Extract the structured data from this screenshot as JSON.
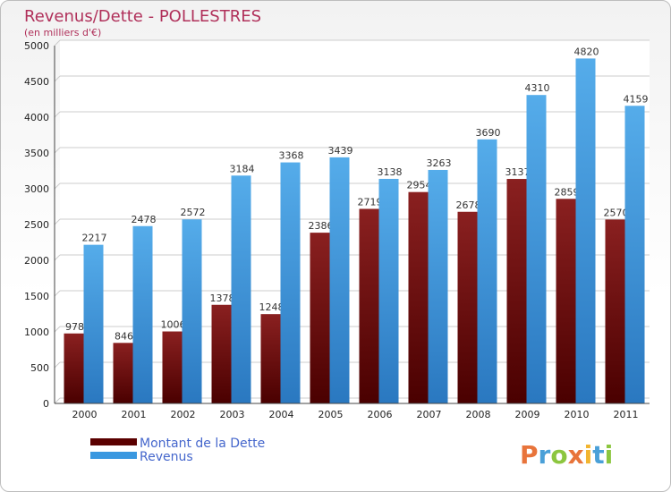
{
  "chart_data": {
    "type": "bar",
    "title": "Revenus/Dette - POLLESTRES",
    "subtitle": "(en milliers d'€)",
    "categories": [
      "2000",
      "2001",
      "2002",
      "2003",
      "2004",
      "2005",
      "2006",
      "2007",
      "2008",
      "2009",
      "2010",
      "2011"
    ],
    "series": [
      {
        "name": "Montant de la Dette",
        "color": "#7a1010",
        "values": [
          978,
          846,
          1006,
          1378,
          1248,
          2386,
          2719,
          2954,
          2678,
          3137,
          2859,
          2570
        ]
      },
      {
        "name": "Revenus",
        "color": "#3a98e0",
        "values": [
          2217,
          2478,
          2572,
          3184,
          3368,
          3439,
          3138,
          3263,
          3690,
          4310,
          4820,
          4159
        ]
      }
    ],
    "ylim": [
      0,
      5000
    ],
    "yticks": [
      0,
      500,
      1000,
      1500,
      2000,
      2500,
      3000,
      3500,
      4000,
      4500,
      5000
    ],
    "grid": true,
    "legend": "bottom-left"
  },
  "brand": {
    "letters": [
      "P",
      "r",
      "o",
      "x",
      "i",
      "t",
      "i"
    ],
    "colors": [
      "#e8743b",
      "#4aa0d8",
      "#8cc63f",
      "#e8743b",
      "#f2b530",
      "#4aa0d8",
      "#8cc63f"
    ]
  }
}
